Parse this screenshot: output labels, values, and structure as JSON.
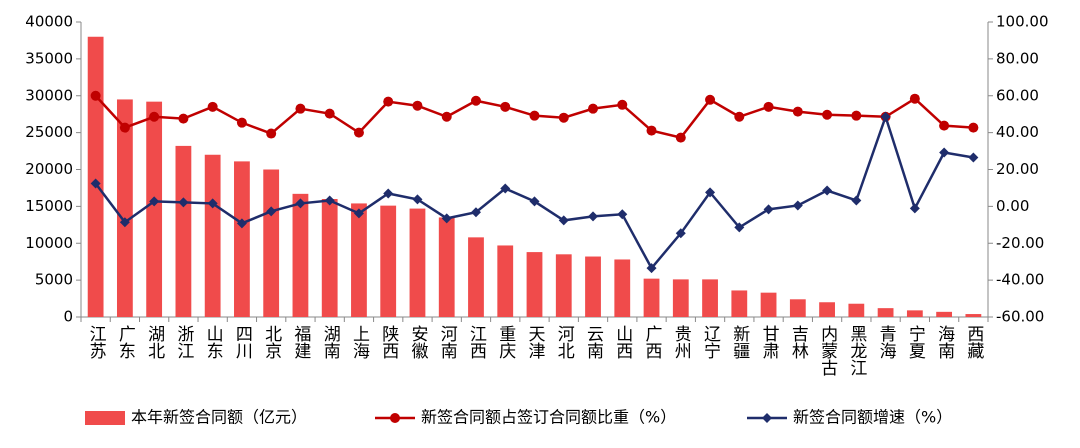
{
  "chart_data": {
    "type": "bar-line",
    "categories": [
      "江苏",
      "广东",
      "湖北",
      "浙江",
      "山东",
      "四川",
      "北京",
      "福建",
      "湖南",
      "上海",
      "陕西",
      "安徽",
      "河南",
      "江西",
      "重庆",
      "天津",
      "河北",
      "云南",
      "山西",
      "广西",
      "贵州",
      "辽宁",
      "新疆",
      "甘肃",
      "吉林",
      "内蒙古",
      "黑龙江",
      "青海",
      "宁夏",
      "海南",
      "西藏"
    ],
    "series": [
      {
        "name": "本年新签合同额（亿元）",
        "type": "bar",
        "color": "#f04b4b",
        "values": [
          38000,
          29500,
          29200,
          23200,
          22000,
          21100,
          20000,
          16700,
          16000,
          15400,
          15100,
          14700,
          13500,
          10800,
          9700,
          8800,
          8500,
          8200,
          7800,
          5200,
          5100,
          5100,
          3600,
          3300,
          2400,
          2000,
          1800,
          1200,
          900,
          700,
          400
        ]
      },
      {
        "name": "新签合同额占签订合同额比重（%）",
        "type": "line",
        "axis": "y2",
        "color": "#c00000",
        "marker": "circle",
        "values": [
          60.0,
          42.7,
          48.6,
          47.6,
          54.0,
          45.4,
          39.5,
          53.0,
          50.3,
          40.0,
          56.8,
          54.6,
          48.6,
          57.3,
          54.0,
          49.2,
          48.1,
          53.0,
          55.1,
          41.1,
          37.3,
          57.8,
          48.6,
          54.0,
          51.4,
          49.7,
          49.2,
          48.6,
          58.4,
          43.8,
          42.7
        ]
      },
      {
        "name": "新签合同额增速（%）",
        "type": "line",
        "axis": "y2",
        "color": "#1f2d6b",
        "marker": "diamond",
        "values": [
          12.4,
          -8.6,
          2.7,
          2.2,
          1.6,
          -9.2,
          -2.7,
          1.6,
          3.2,
          -3.8,
          7.0,
          3.8,
          -6.5,
          -3.2,
          9.7,
          2.7,
          -7.6,
          -5.4,
          -4.3,
          -33.5,
          -14.6,
          7.6,
          -11.4,
          -1.6,
          0.5,
          8.6,
          3.2,
          48.6,
          -1.1,
          29.2,
          26.5
        ]
      }
    ],
    "ylim": [
      0,
      40000
    ],
    "yticks": [
      0,
      5000,
      10000,
      15000,
      20000,
      25000,
      30000,
      35000,
      40000
    ],
    "y2lim": [
      -60,
      100
    ],
    "y2ticks": [
      {
        "value": -60,
        "label": "-60.00"
      },
      {
        "value": -40,
        "label": "-40.00"
      },
      {
        "value": -20,
        "label": "-20.00"
      },
      {
        "value": 0,
        "label": "0.00"
      },
      {
        "value": 20,
        "label": "20.00"
      },
      {
        "value": 40,
        "label": "40.00"
      },
      {
        "value": 60,
        "label": "60.00"
      },
      {
        "value": 80,
        "label": "80.00"
      },
      {
        "value": 100,
        "label": "100.00"
      }
    ],
    "grid": false,
    "legend": "bottom"
  }
}
